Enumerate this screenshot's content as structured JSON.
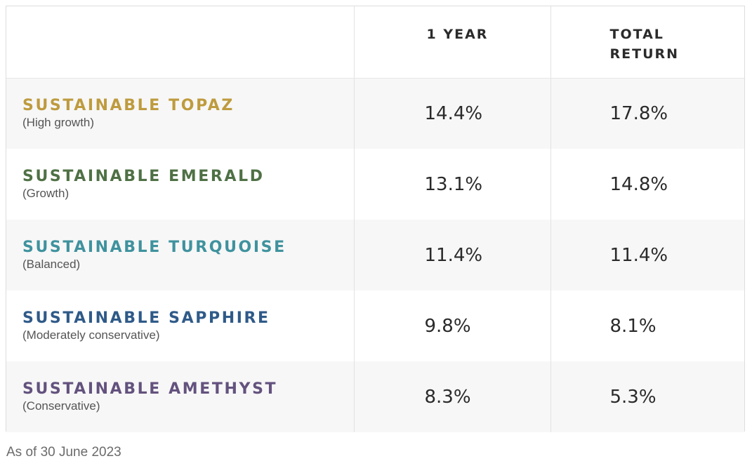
{
  "table": {
    "headers": [
      "",
      "1 YEAR",
      "TOTAL\nRETURN"
    ],
    "rows": [
      {
        "name": "SUSTAINABLE TOPAZ",
        "subtitle": "(High growth)",
        "one_year": "14.4%",
        "total_return": "17.8%",
        "color": "#BE9B3E"
      },
      {
        "name": "SUSTAINABLE EMERALD",
        "subtitle": "(Growth)",
        "one_year": "13.1%",
        "total_return": "14.8%",
        "color": "#4F7145"
      },
      {
        "name": "SUSTAINABLE TURQUOISE",
        "subtitle": "(Balanced)",
        "one_year": "11.4%",
        "total_return": "11.4%",
        "color": "#3F929E"
      },
      {
        "name": "SUSTAINABLE SAPPHIRE",
        "subtitle": "(Moderately conservative)",
        "one_year": "9.8%",
        "total_return": "8.1%",
        "color": "#2F5A88"
      },
      {
        "name": "SUSTAINABLE AMETHYST",
        "subtitle": "(Conservative)",
        "one_year": "8.3%",
        "total_return": "5.3%",
        "color": "#63527E"
      }
    ]
  },
  "footnote": "As of 30 June 2023"
}
